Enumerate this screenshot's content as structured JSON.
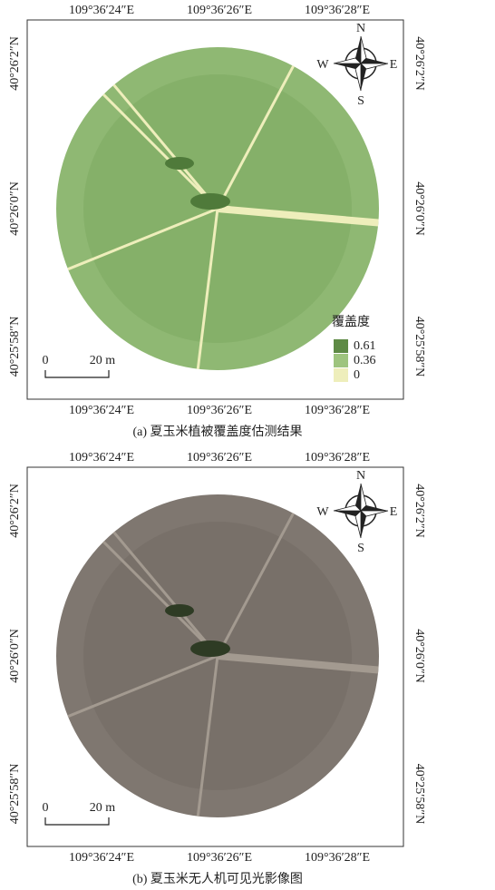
{
  "panels": [
    {
      "top_labels": [
        "109°36′24″E",
        "109°36′26″E",
        "109°36′28″E"
      ],
      "bottom_labels": [
        "109°36′24″E",
        "109°36′26″E",
        "109°36′28″E"
      ],
      "left_labels": [
        "40°26′2″N",
        "40°26′0″N",
        "40°25′58″N"
      ],
      "right_labels": [
        "40°26′2″N",
        "40°26′0″N",
        "40°25′58″N"
      ],
      "compass": {
        "n": "N",
        "s": "S",
        "e": "E",
        "w": "W"
      },
      "scale_bar": {
        "start": "0",
        "end": "20 m"
      },
      "legend": {
        "title": "覆盖度",
        "items": [
          0.61,
          0.36,
          0
        ]
      },
      "caption": "(a) 夏玉米植被覆盖度估测结果"
    },
    {
      "top_labels": [
        "109°36′24″E",
        "109°36′26″E",
        "109°36′28″E"
      ],
      "bottom_labels": [
        "109°36′24″E",
        "109°36′26″E",
        "109°36′28″E"
      ],
      "left_labels": [
        "40°26′2″N",
        "40°26′0″N",
        "40°25′58″N"
      ],
      "right_labels": [
        "40°26′2″N",
        "40°26′0″N",
        "40°25′58″N"
      ],
      "compass": {
        "n": "N",
        "s": "S",
        "e": "E",
        "w": "W"
      },
      "scale_bar": {
        "start": "0",
        "end": "20 m"
      },
      "caption": "(b) 夏玉米无人机可见光影像图"
    }
  ]
}
